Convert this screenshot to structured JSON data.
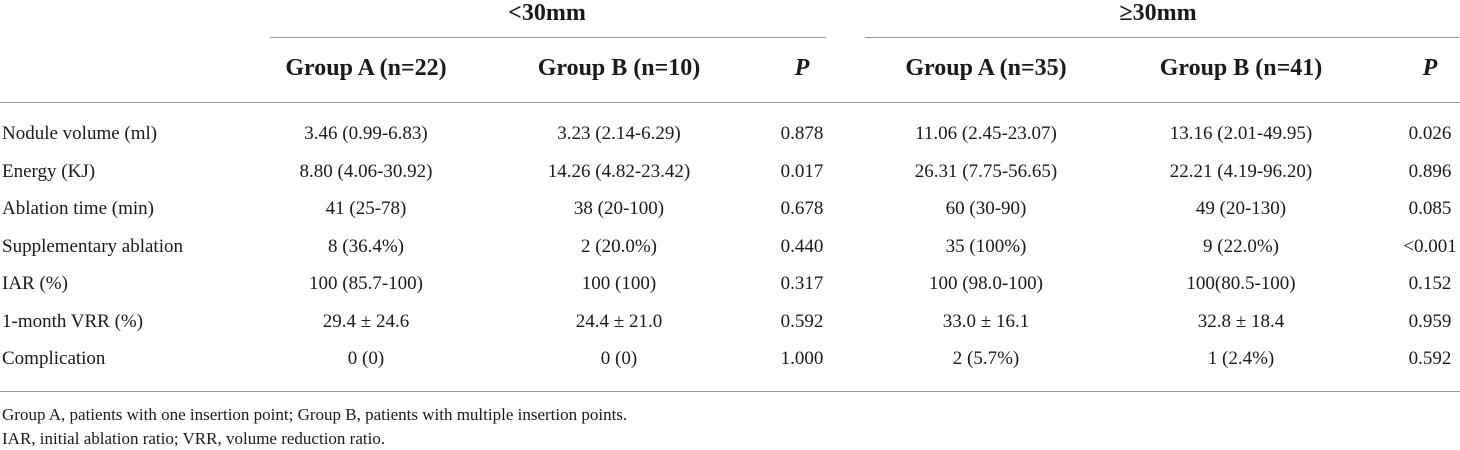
{
  "groups": [
    "<30mm",
    "≥30mm"
  ],
  "headers": {
    "lt30": [
      "Group A (n=22)",
      "Group B (n=10)",
      "P"
    ],
    "ge30": [
      "Group A (n=35)",
      "Group B (n=41)",
      "P"
    ]
  },
  "rows": [
    {
      "label": "Nodule volume (ml)",
      "values": [
        "3.46 (0.99-6.83)",
        "3.23 (2.14-6.29)",
        "0.878",
        "11.06 (2.45-23.07)",
        "13.16 (2.01-49.95)",
        "0.026"
      ]
    },
    {
      "label": "Energy (KJ)",
      "values": [
        "8.80 (4.06-30.92)",
        "14.26 (4.82-23.42)",
        "0.017",
        "26.31 (7.75-56.65)",
        "22.21 (4.19-96.20)",
        "0.896"
      ]
    },
    {
      "label": "Ablation time (min)",
      "values": [
        "41 (25-78)",
        "38 (20-100)",
        "0.678",
        "60 (30-90)",
        "49 (20-130)",
        "0.085"
      ]
    },
    {
      "label": "Supplementary ablation",
      "values": [
        "8 (36.4%)",
        "2 (20.0%)",
        "0.440",
        "35 (100%)",
        "9 (22.0%)",
        "<0.001"
      ]
    },
    {
      "label": "IAR (%)",
      "values": [
        "100 (85.7-100)",
        "100 (100)",
        "0.317",
        "100 (98.0-100)",
        "100(80.5-100)",
        "0.152"
      ]
    },
    {
      "label": "1-month VRR (%)",
      "values": [
        "29.4 ± 24.6",
        "24.4 ± 21.0",
        "0.592",
        "33.0 ± 16.1",
        "32.8 ± 18.4",
        "0.959"
      ]
    },
    {
      "label": "Complication",
      "values": [
        "0 (0)",
        "0 (0)",
        "1.000",
        "2 (5.7%)",
        "1 (2.4%)",
        "0.592"
      ]
    }
  ],
  "footnotes": [
    "Group A, patients with one insertion point; Group B, patients with multiple insertion points.",
    "IAR, initial ablation ratio; VRR, volume reduction ratio."
  ]
}
